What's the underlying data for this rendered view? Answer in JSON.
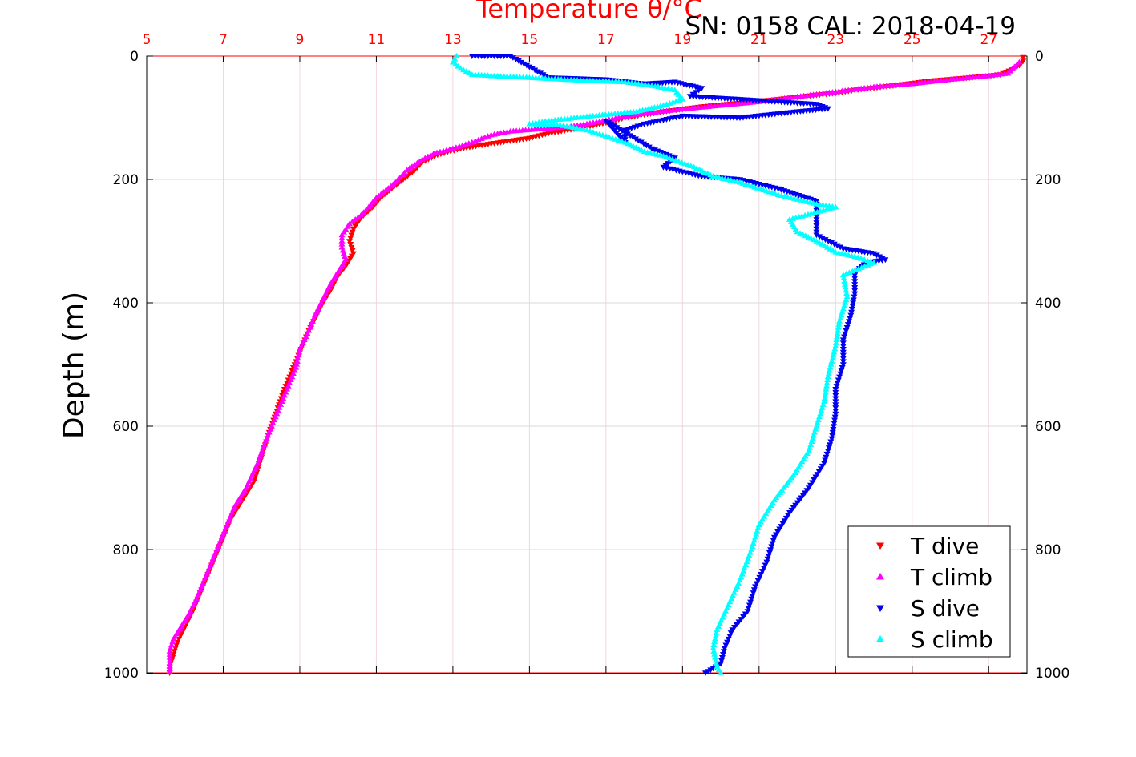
{
  "chart_data": {
    "type": "scatter",
    "top_axis_label_text": "Temperature θ/°C",
    "title": "SN: 0158  CAL: 2018-04-19",
    "ylabel": "Depth (m)",
    "xlim": [
      5,
      28
    ],
    "ylim": [
      0,
      1000
    ],
    "y_reversed": true,
    "x_ticks": [
      "5",
      "7",
      "9",
      "11",
      "13",
      "15",
      "17",
      "19",
      "21",
      "23",
      "25",
      "27"
    ],
    "y_ticks": [
      "0",
      "200",
      "400",
      "600",
      "800",
      "1000"
    ],
    "grid": true,
    "legend_position": "bottom-right",
    "colors": {
      "t_dive": "#ff0000",
      "t_climb": "#ff00ff",
      "s_dive": "#0000ee",
      "s_climb": "#00ffff",
      "top_axis": "#ff0000",
      "grid": "#d9d9d9"
    },
    "series": [
      {
        "name": "T dive",
        "marker": "triangle-down",
        "color": "#ff0000",
        "points": [
          [
            27.9,
            2
          ],
          [
            27.9,
            8
          ],
          [
            27.8,
            15
          ],
          [
            27.6,
            22
          ],
          [
            27.3,
            30
          ],
          [
            26.5,
            35
          ],
          [
            25.5,
            40
          ],
          [
            24.5,
            48
          ],
          [
            23.5,
            55
          ],
          [
            23.0,
            60
          ],
          [
            22.5,
            63
          ],
          [
            21.5,
            70
          ],
          [
            20.5,
            76
          ],
          [
            19.5,
            82
          ],
          [
            18.5,
            90
          ],
          [
            17.5,
            100
          ],
          [
            17.0,
            108
          ],
          [
            16.5,
            115
          ],
          [
            16.0,
            120
          ],
          [
            15.5,
            125
          ],
          [
            15.0,
            133
          ],
          [
            14.0,
            142
          ],
          [
            13.2,
            150
          ],
          [
            12.6,
            160
          ],
          [
            12.2,
            172
          ],
          [
            12.0,
            185
          ],
          [
            11.7,
            200
          ],
          [
            11.4,
            215
          ],
          [
            11.1,
            230
          ],
          [
            10.9,
            245
          ],
          [
            10.6,
            262
          ],
          [
            10.4,
            280
          ],
          [
            10.3,
            300
          ],
          [
            10.4,
            320
          ],
          [
            10.2,
            340
          ],
          [
            10.0,
            355
          ],
          [
            9.8,
            380
          ],
          [
            9.6,
            400
          ],
          [
            9.4,
            425
          ],
          [
            9.2,
            450
          ],
          [
            9.0,
            480
          ],
          [
            8.8,
            510
          ],
          [
            8.6,
            540
          ],
          [
            8.4,
            575
          ],
          [
            8.2,
            610
          ],
          [
            8.0,
            650
          ],
          [
            7.8,
            690
          ],
          [
            7.5,
            720
          ],
          [
            7.2,
            750
          ],
          [
            7.0,
            780
          ],
          [
            6.8,
            810
          ],
          [
            6.6,
            840
          ],
          [
            6.4,
            870
          ],
          [
            6.2,
            900
          ],
          [
            6.0,
            925
          ],
          [
            5.8,
            950
          ],
          [
            5.7,
            970
          ],
          [
            5.6,
            990
          ],
          [
            5.6,
            1000
          ]
        ]
      },
      {
        "name": "T climb",
        "marker": "triangle-up",
        "color": "#ff00ff",
        "points": [
          [
            27.8,
            10
          ],
          [
            27.5,
            28
          ],
          [
            27.0,
            32
          ],
          [
            26.0,
            38
          ],
          [
            25.0,
            45
          ],
          [
            24.0,
            50
          ],
          [
            23.0,
            58
          ],
          [
            22.0,
            66
          ],
          [
            21.0,
            74
          ],
          [
            20.0,
            80
          ],
          [
            19.0,
            86
          ],
          [
            18.0,
            93
          ],
          [
            17.5,
            98
          ],
          [
            17.0,
            104
          ],
          [
            16.5,
            110
          ],
          [
            16.0,
            115
          ],
          [
            15.3,
            118
          ],
          [
            14.5,
            122
          ],
          [
            14.0,
            128
          ],
          [
            13.5,
            140
          ],
          [
            13.0,
            150
          ],
          [
            12.5,
            158
          ],
          [
            12.2,
            168
          ],
          [
            11.8,
            185
          ],
          [
            11.5,
            205
          ],
          [
            11.0,
            230
          ],
          [
            10.8,
            245
          ],
          [
            10.6,
            258
          ],
          [
            10.3,
            272
          ],
          [
            10.1,
            290
          ],
          [
            10.1,
            310
          ],
          [
            10.2,
            330
          ],
          [
            10.0,
            350
          ],
          [
            9.8,
            370
          ],
          [
            9.6,
            395
          ],
          [
            9.4,
            420
          ],
          [
            9.2,
            450
          ],
          [
            9.0,
            475
          ],
          [
            8.9,
            505
          ],
          [
            8.7,
            535
          ],
          [
            8.5,
            565
          ],
          [
            8.3,
            595
          ],
          [
            8.1,
            625
          ],
          [
            7.9,
            660
          ],
          [
            7.6,
            700
          ],
          [
            7.3,
            730
          ],
          [
            7.1,
            760
          ],
          [
            6.9,
            790
          ],
          [
            6.7,
            820
          ],
          [
            6.5,
            850
          ],
          [
            6.3,
            880
          ],
          [
            6.1,
            905
          ],
          [
            5.9,
            925
          ],
          [
            5.7,
            945
          ],
          [
            5.6,
            965
          ],
          [
            5.6,
            985
          ],
          [
            5.6,
            998
          ]
        ]
      },
      {
        "name": "S dive",
        "marker": "triangle-down",
        "color": "#0000ee",
        "points": [
          [
            13.5,
            0
          ],
          [
            14.0,
            0
          ],
          [
            14.5,
            0
          ],
          [
            15.5,
            35
          ],
          [
            17.0,
            38
          ],
          [
            18.0,
            45
          ],
          [
            18.8,
            42
          ],
          [
            19.5,
            52
          ],
          [
            19.2,
            65
          ],
          [
            21.0,
            72
          ],
          [
            22.5,
            78
          ],
          [
            22.8,
            85
          ],
          [
            22.0,
            90
          ],
          [
            20.5,
            100
          ],
          [
            19.0,
            97
          ],
          [
            18.0,
            110
          ],
          [
            17.5,
            120
          ],
          [
            17.5,
            140
          ],
          [
            17.0,
            105
          ],
          [
            18.2,
            150
          ],
          [
            18.8,
            165
          ],
          [
            18.5,
            180
          ],
          [
            19.5,
            195
          ],
          [
            20.5,
            200
          ],
          [
            21.5,
            215
          ],
          [
            22.5,
            235
          ],
          [
            22.5,
            290
          ],
          [
            23.2,
            312
          ],
          [
            24.0,
            320
          ],
          [
            24.3,
            330
          ],
          [
            23.8,
            335
          ],
          [
            23.5,
            350
          ],
          [
            23.5,
            385
          ],
          [
            23.4,
            420
          ],
          [
            23.2,
            460
          ],
          [
            23.2,
            500
          ],
          [
            23.0,
            540
          ],
          [
            23.0,
            580
          ],
          [
            22.9,
            620
          ],
          [
            22.7,
            660
          ],
          [
            22.3,
            700
          ],
          [
            21.8,
            740
          ],
          [
            21.4,
            780
          ],
          [
            21.2,
            820
          ],
          [
            20.9,
            860
          ],
          [
            20.7,
            900
          ],
          [
            20.3,
            930
          ],
          [
            20.1,
            960
          ],
          [
            20.0,
            985
          ],
          [
            19.6,
            1000
          ]
        ]
      },
      {
        "name": "S climb",
        "marker": "triangle-up",
        "color": "#00ffff",
        "points": [
          [
            13.1,
            0
          ],
          [
            13.0,
            10
          ],
          [
            13.2,
            20
          ],
          [
            13.5,
            30
          ],
          [
            14.0,
            32
          ],
          [
            15.0,
            35
          ],
          [
            16.5,
            40
          ],
          [
            17.5,
            42
          ],
          [
            18.2,
            48
          ],
          [
            18.8,
            55
          ],
          [
            19.0,
            70
          ],
          [
            18.5,
            80
          ],
          [
            17.8,
            90
          ],
          [
            16.5,
            98
          ],
          [
            15.5,
            105
          ],
          [
            15.0,
            110
          ],
          [
            15.8,
            112
          ],
          [
            16.5,
            120
          ],
          [
            17.0,
            130
          ],
          [
            17.5,
            140
          ],
          [
            18.0,
            155
          ],
          [
            18.5,
            162
          ],
          [
            19.3,
            180
          ],
          [
            19.8,
            195
          ],
          [
            20.5,
            205
          ],
          [
            21.5,
            225
          ],
          [
            22.5,
            240
          ],
          [
            23.0,
            245
          ],
          [
            21.8,
            265
          ],
          [
            22.0,
            285
          ],
          [
            22.5,
            300
          ],
          [
            23.0,
            318
          ],
          [
            23.5,
            325
          ],
          [
            24.0,
            335
          ],
          [
            23.2,
            355
          ],
          [
            23.3,
            390
          ],
          [
            23.1,
            430
          ],
          [
            23.0,
            470
          ],
          [
            22.8,
            520
          ],
          [
            22.7,
            560
          ],
          [
            22.5,
            600
          ],
          [
            22.3,
            640
          ],
          [
            21.9,
            680
          ],
          [
            21.4,
            720
          ],
          [
            21.0,
            760
          ],
          [
            20.8,
            800
          ],
          [
            20.5,
            850
          ],
          [
            20.2,
            890
          ],
          [
            19.9,
            930
          ],
          [
            19.8,
            960
          ],
          [
            19.9,
            990
          ],
          [
            20.0,
            1000
          ]
        ]
      }
    ]
  }
}
